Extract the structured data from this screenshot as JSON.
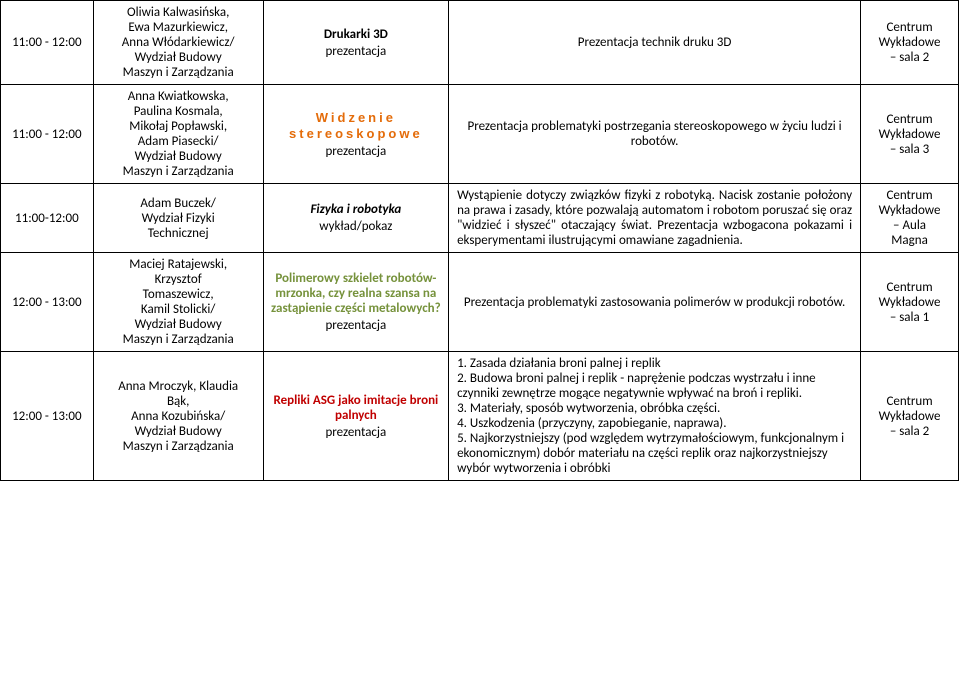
{
  "rows": [
    {
      "time": "11:00 - 12:00",
      "speakers": "Oliwia Kalwasińska,\nEwa Mazurkiewicz,\nAnna Włódarkiewicz/\nWydział Budowy\nMaszyn i Zarządzania",
      "title": "Drukarki 3D",
      "title_class": "title-3d",
      "subtitle": "prezentacja",
      "description": "Prezentacja technik druku 3D",
      "desc_class": "desc-center",
      "location": "Centrum\nWykładowe\n– sala 2"
    },
    {
      "time": "11:00 - 12:00",
      "speakers": "Anna Kwiatkowska,\nPaulina Kosmala,\nMikołaj Popławski,\nAdam Piasecki/\nWydział Budowy\nMaszyn i Zarządzania",
      "title": "Widzenie stereoskopowe",
      "title_class": "title-stereo",
      "subtitle": "prezentacja",
      "description": "Prezentacja problematyki postrzegania stereoskopowego w życiu ludzi i robotów.",
      "desc_class": "desc-center",
      "location": "Centrum\nWykładowe\n– sala 3"
    },
    {
      "time": "11:00-12:00",
      "speakers": "Adam Buczek/\nWydział Fizyki\nTechnicznej",
      "title": "Fizyka i robotyka",
      "title_class": "title-fizyka",
      "subtitle": "wykład/pokaz",
      "description": "Wystąpienie dotyczy związków fizyki z robotyką. Nacisk zostanie położony na prawa i zasady, które pozwalają automatom i robotom poruszać się oraz \"widzieć i słyszeć\" otaczający świat. Prezentacja wzbogacona pokazami i eksperymentami ilustrującymi omawiane zagadnienia.",
      "desc_class": "desc-justify",
      "location": "Centrum\nWykładowe\n– Aula\nMagna"
    },
    {
      "time": "12:00 - 13:00",
      "speakers": "Maciej Ratajewski,\nKrzysztof\nTomaszewicz,\nKamil Stolicki/\nWydział Budowy\nMaszyn i Zarządzania",
      "title": "Polimerowy szkielet robotów-mrzonka, czy realna szansa na zastąpienie części metalowych?",
      "title_class": "title-polimer",
      "subtitle": "prezentacja",
      "description": "Prezentacja problematyki zastosowania polimerów w produkcji robotów.",
      "desc_class": "desc-center",
      "location": "Centrum\nWykładowe\n– sala 1"
    },
    {
      "time": "12:00 - 13:00",
      "speakers": "Anna Mroczyk, Klaudia\nBąk,\nAnna Kozubińska/\nWydział Budowy\nMaszyn i Zarządzania",
      "title": "Repliki ASG jako imitacje broni palnych",
      "title_class": "title-repliki",
      "subtitle": "prezentacja",
      "description": "1. Zasada działania broni palnej i replik\n2. Budowa broni palnej i replik - naprężenie podczas wystrzału i inne czynniki zewnętrze mogące negatywnie wpływać na broń i repliki.\n3. Materiały, sposób wytworzenia, obróbka części.\n4. Uszkodzenia (przyczyny, zapobieganie, naprawa).\n5. Najkorzystniejszy (pod względem wytrzymałościowym, funkcjonalnym i ekonomicznym) dobór materiału na części replik oraz najkorzystniejszy wybór wytworzenia i obróbki",
      "desc_class": "",
      "location": "Centrum\nWykładowe\n– sala 2"
    }
  ]
}
